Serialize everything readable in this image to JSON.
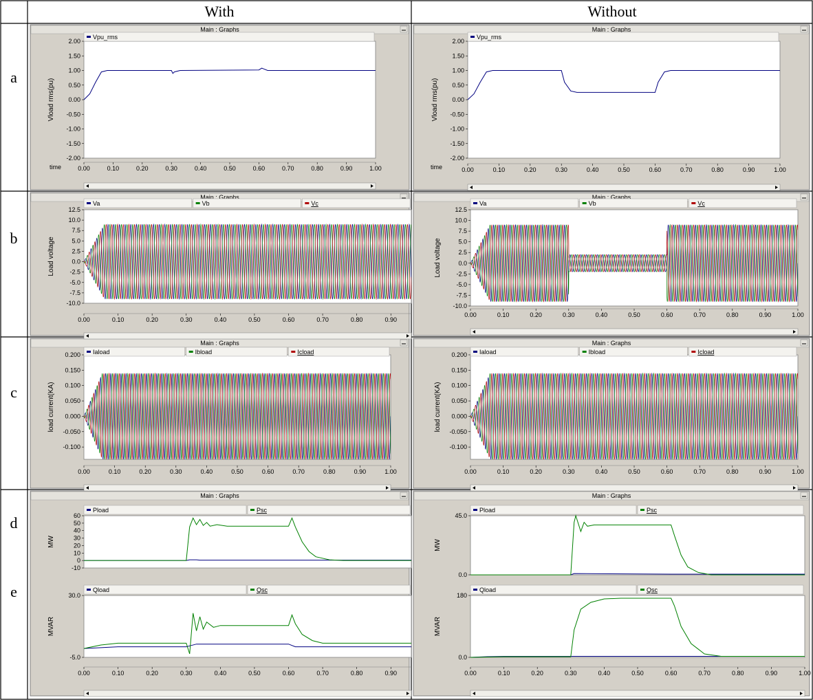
{
  "headers": {
    "corner": "",
    "with": "With",
    "without": "Without"
  },
  "row_labels": [
    "a",
    "b",
    "c",
    "d",
    "e"
  ],
  "window_title": "Main : Graphs",
  "colors": {
    "phase_a": "#000080",
    "phase_b": "#008000",
    "phase_c": "#b00000",
    "panel_bg": "#d4d0c8",
    "plot_bg": "#ffffff"
  },
  "chart_data": [
    {
      "id": "a_with",
      "type": "line",
      "ylabel": "Vload rms(pu)",
      "xlabel": "time",
      "xlim": [
        0,
        1.0
      ],
      "ylim": [
        -2.0,
        2.0
      ],
      "yticks": [
        "2.00",
        "1.50",
        "1.00",
        "0.50",
        "0.00",
        "-0.50",
        "-1.00",
        "-1.50",
        "-2.00"
      ],
      "ytick_values": [
        2,
        1.5,
        1,
        0.5,
        0,
        -0.5,
        -1,
        -1.5,
        -2
      ],
      "xticks": [
        "0.00",
        "0.10",
        "0.20",
        "0.30",
        "0.40",
        "0.50",
        "0.60",
        "0.70",
        "0.80",
        "0.90",
        "1.00"
      ],
      "series": [
        {
          "name": "Vpu_rms",
          "color": "#000080",
          "points": [
            [
              0,
              0
            ],
            [
              0.02,
              0.2
            ],
            [
              0.04,
              0.6
            ],
            [
              0.06,
              0.95
            ],
            [
              0.08,
              1.0
            ],
            [
              0.3,
              1.0
            ],
            [
              0.305,
              0.9
            ],
            [
              0.31,
              0.95
            ],
            [
              0.33,
              1.0
            ],
            [
              0.6,
              1.02
            ],
            [
              0.61,
              1.08
            ],
            [
              0.63,
              1.0
            ],
            [
              1.0,
              1.0
            ]
          ]
        }
      ]
    },
    {
      "id": "a_without",
      "type": "line",
      "ylabel": "Vload rms(pu)",
      "xlabel": "time",
      "xlim": [
        0,
        1.0
      ],
      "ylim": [
        -2.0,
        2.0
      ],
      "yticks": [
        "2.00",
        "1.50",
        "1.00",
        "0.50",
        "0.00",
        "-0.50",
        "-1.00",
        "-1.50",
        "-2.00"
      ],
      "ytick_values": [
        2,
        1.5,
        1,
        0.5,
        0,
        -0.5,
        -1,
        -1.5,
        -2
      ],
      "xticks": [
        "0.00",
        "0.10",
        "0.20",
        "0.30",
        "0.40",
        "0.50",
        "0.60",
        "0.70",
        "0.80",
        "0.90",
        "1.00"
      ],
      "series": [
        {
          "name": "Vpu_rms",
          "color": "#000080",
          "points": [
            [
              0,
              0
            ],
            [
              0.02,
              0.2
            ],
            [
              0.04,
              0.6
            ],
            [
              0.06,
              0.95
            ],
            [
              0.08,
              1.0
            ],
            [
              0.3,
              1.0
            ],
            [
              0.31,
              0.6
            ],
            [
              0.33,
              0.3
            ],
            [
              0.35,
              0.25
            ],
            [
              0.6,
              0.25
            ],
            [
              0.61,
              0.6
            ],
            [
              0.63,
              0.95
            ],
            [
              0.65,
              1.0
            ],
            [
              1.0,
              1.0
            ]
          ]
        }
      ]
    },
    {
      "id": "b_with",
      "type": "line",
      "ylabel": "Load voltage",
      "xlim": [
        0,
        0.96
      ],
      "ylim": [
        -10.0,
        12.5
      ],
      "yticks": [
        "12.5",
        "10.0",
        "7.5",
        "5.0",
        "2.5",
        "0.0",
        "-2.5",
        "-5.0",
        "-7.5",
        "-10.0"
      ],
      "ytick_values": [
        12.5,
        10,
        7.5,
        5,
        2.5,
        0,
        -2.5,
        -5,
        -7.5,
        -10
      ],
      "xticks": [
        "0.00",
        "0.10",
        "0.20",
        "0.30",
        "0.40",
        "0.50",
        "0.60",
        "0.70",
        "0.80",
        "0.90"
      ],
      "series": [
        {
          "name": "Va",
          "color": "#000080"
        },
        {
          "name": "Vb",
          "color": "#008000"
        },
        {
          "name": "Vc",
          "color": "#b00000"
        }
      ],
      "amplitude": 9.0,
      "sag": [
        0.3,
        0.6,
        9.0
      ]
    },
    {
      "id": "b_without",
      "type": "line",
      "ylabel": "Load voltage",
      "xlim": [
        0,
        1.0
      ],
      "ylim": [
        -10.0,
        12.5
      ],
      "yticks": [
        "12.5",
        "10.0",
        "7.5",
        "5.0",
        "2.5",
        "0.0",
        "-2.5",
        "-5.0",
        "-7.5",
        "-10.0"
      ],
      "ytick_values": [
        12.5,
        10,
        7.5,
        5,
        2.5,
        0,
        -2.5,
        -5,
        -7.5,
        -10
      ],
      "xticks": [
        "0.00",
        "0.10",
        "0.20",
        "0.30",
        "0.40",
        "0.50",
        "0.60",
        "0.70",
        "0.80",
        "0.90",
        "1.00"
      ],
      "series": [
        {
          "name": "Va",
          "color": "#000080"
        },
        {
          "name": "Vb",
          "color": "#008000"
        },
        {
          "name": "Vc",
          "color": "#b00000"
        }
      ],
      "amplitude": 9.0,
      "sag": [
        0.3,
        0.6,
        2.0
      ]
    },
    {
      "id": "c_with",
      "type": "line",
      "ylabel": "load current(KA)",
      "xlim": [
        0,
        1.0
      ],
      "ylim": [
        -0.14,
        0.2
      ],
      "yticks": [
        "0.200",
        "0.150",
        "0.100",
        "0.050",
        "0.000",
        "-0.050",
        "-0.100"
      ],
      "ytick_values": [
        0.2,
        0.15,
        0.1,
        0.05,
        0,
        -0.05,
        -0.1
      ],
      "xticks": [
        "0.00",
        "0.10",
        "0.20",
        "0.30",
        "0.40",
        "0.50",
        "0.60",
        "0.70",
        "0.80",
        "0.90",
        "1.00"
      ],
      "series": [
        {
          "name": "Iaload",
          "color": "#000080"
        },
        {
          "name": "Ibload",
          "color": "#008000"
        },
        {
          "name": "Icload",
          "color": "#b00000"
        }
      ],
      "amplitude": 0.14,
      "sag": [
        0.3,
        0.6,
        0.14
      ]
    },
    {
      "id": "c_without",
      "type": "line",
      "ylabel": "load current(KA)",
      "xlim": [
        0,
        1.0
      ],
      "ylim": [
        -0.14,
        0.2
      ],
      "yticks": [
        "0.200",
        "0.150",
        "0.100",
        "0.050",
        "0.000",
        "-0.050",
        "-0.100"
      ],
      "ytick_values": [
        0.2,
        0.15,
        0.1,
        0.05,
        0,
        -0.05,
        -0.1
      ],
      "xticks": [
        "0.00",
        "0.10",
        "0.20",
        "0.30",
        "0.40",
        "0.50",
        "0.60",
        "0.70",
        "0.80",
        "0.90",
        "1.00"
      ],
      "series": [
        {
          "name": "Iaload",
          "color": "#000080"
        },
        {
          "name": "Ibload",
          "color": "#008000"
        },
        {
          "name": "Icload",
          "color": "#b00000"
        }
      ],
      "amplitude": 0.14,
      "sag": [
        0.3,
        0.6,
        0.14
      ]
    },
    {
      "id": "d_with",
      "type": "line",
      "ylabel": "MW",
      "xlim": [
        0,
        0.96
      ],
      "ylim": [
        -10,
        60
      ],
      "yticks": [
        "60",
        "50",
        "40",
        "30",
        "20",
        "10",
        "0",
        "-10"
      ],
      "ytick_values": [
        60,
        50,
        40,
        30,
        20,
        10,
        0,
        -10
      ],
      "series": [
        {
          "name": "Pload",
          "color": "#000080",
          "points": [
            [
              0,
              0
            ],
            [
              0.3,
              0
            ],
            [
              0.31,
              1
            ],
            [
              0.33,
              1
            ],
            [
              0.34,
              0.5
            ],
            [
              0.96,
              0.5
            ]
          ]
        },
        {
          "name": "Psc",
          "color": "#008000",
          "points": [
            [
              0,
              0
            ],
            [
              0.3,
              0
            ],
            [
              0.31,
              45
            ],
            [
              0.32,
              57
            ],
            [
              0.33,
              48
            ],
            [
              0.34,
              55
            ],
            [
              0.35,
              47
            ],
            [
              0.36,
              51
            ],
            [
              0.37,
              46
            ],
            [
              0.39,
              48
            ],
            [
              0.42,
              46
            ],
            [
              0.6,
              46
            ],
            [
              0.61,
              57
            ],
            [
              0.62,
              45
            ],
            [
              0.64,
              25
            ],
            [
              0.66,
              12
            ],
            [
              0.68,
              5
            ],
            [
              0.72,
              1
            ],
            [
              0.76,
              0
            ],
            [
              0.96,
              0
            ]
          ]
        }
      ]
    },
    {
      "id": "d_without",
      "type": "line",
      "ylabel": "MW",
      "xlim": [
        0,
        1.0
      ],
      "ylim": [
        0,
        45
      ],
      "yticks": [
        "45.0",
        "0.0"
      ],
      "ytick_values": [
        45,
        0
      ],
      "series": [
        {
          "name": "Pload",
          "color": "#000080",
          "points": [
            [
              0,
              0
            ],
            [
              0.3,
              0
            ],
            [
              0.31,
              1
            ],
            [
              0.6,
              0.5
            ],
            [
              1.0,
              0.5
            ]
          ]
        },
        {
          "name": "Psc",
          "color": "#008000",
          "points": [
            [
              0,
              0
            ],
            [
              0.3,
              0
            ],
            [
              0.31,
              40
            ],
            [
              0.315,
              45
            ],
            [
              0.33,
              33
            ],
            [
              0.34,
              40
            ],
            [
              0.35,
              37
            ],
            [
              0.37,
              38
            ],
            [
              0.6,
              38
            ],
            [
              0.61,
              30
            ],
            [
              0.63,
              15
            ],
            [
              0.65,
              6
            ],
            [
              0.68,
              2
            ],
            [
              0.72,
              0
            ],
            [
              1.0,
              0
            ]
          ]
        }
      ]
    },
    {
      "id": "e_with",
      "type": "line",
      "ylabel": "MVAR",
      "xlim": [
        0,
        0.96
      ],
      "ylim": [
        -5.0,
        30.0
      ],
      "yticks": [
        "30.0",
        "-5.0"
      ],
      "ytick_values": [
        30,
        -5
      ],
      "xticks": [
        "0.00",
        "0.10",
        "0.20",
        "0.30",
        "0.40",
        "0.50",
        "0.60",
        "0.70",
        "0.80",
        "0.90"
      ],
      "series": [
        {
          "name": "Qload",
          "color": "#000080",
          "points": [
            [
              0,
              0
            ],
            [
              0.05,
              0.5
            ],
            [
              0.1,
              1.0
            ],
            [
              0.3,
              1.0
            ],
            [
              0.31,
              1.5
            ],
            [
              0.33,
              2.5
            ],
            [
              0.6,
              2.5
            ],
            [
              0.62,
              1.0
            ],
            [
              0.96,
              1.0
            ]
          ]
        },
        {
          "name": "Qsc",
          "color": "#008000",
          "points": [
            [
              0,
              0
            ],
            [
              0.05,
              2
            ],
            [
              0.1,
              3
            ],
            [
              0.3,
              3
            ],
            [
              0.31,
              -3
            ],
            [
              0.32,
              20
            ],
            [
              0.33,
              10
            ],
            [
              0.34,
              18
            ],
            [
              0.35,
              11
            ],
            [
              0.36,
              15
            ],
            [
              0.38,
              12
            ],
            [
              0.4,
              13
            ],
            [
              0.6,
              13
            ],
            [
              0.61,
              19
            ],
            [
              0.62,
              14
            ],
            [
              0.64,
              8
            ],
            [
              0.67,
              4.5
            ],
            [
              0.7,
              3
            ],
            [
              0.96,
              3
            ]
          ]
        }
      ]
    },
    {
      "id": "e_without",
      "type": "line",
      "ylabel": "MVAR",
      "xlim": [
        0,
        1.0
      ],
      "ylim": [
        0,
        180
      ],
      "yticks": [
        "180",
        "0.0"
      ],
      "ytick_values": [
        180,
        0
      ],
      "xticks": [
        "0.00",
        "0.10",
        "0.20",
        "0.30",
        "0.40",
        "0.50",
        "0.60",
        "0.70",
        "0.80",
        "0.90",
        "1.00"
      ],
      "series": [
        {
          "name": "Qload",
          "color": "#000080",
          "points": [
            [
              0,
              0
            ],
            [
              0.05,
              2
            ],
            [
              0.1,
              3
            ],
            [
              1.0,
              3
            ]
          ]
        },
        {
          "name": "Qsc",
          "color": "#008000",
          "points": [
            [
              0,
              0
            ],
            [
              0.05,
              1
            ],
            [
              0.1,
              2
            ],
            [
              0.3,
              2
            ],
            [
              0.31,
              80
            ],
            [
              0.33,
              140
            ],
            [
              0.36,
              160
            ],
            [
              0.4,
              170
            ],
            [
              0.45,
              172
            ],
            [
              0.6,
              172
            ],
            [
              0.61,
              150
            ],
            [
              0.63,
              90
            ],
            [
              0.66,
              40
            ],
            [
              0.7,
              10
            ],
            [
              0.75,
              3
            ],
            [
              1.0,
              3
            ]
          ]
        }
      ]
    }
  ]
}
